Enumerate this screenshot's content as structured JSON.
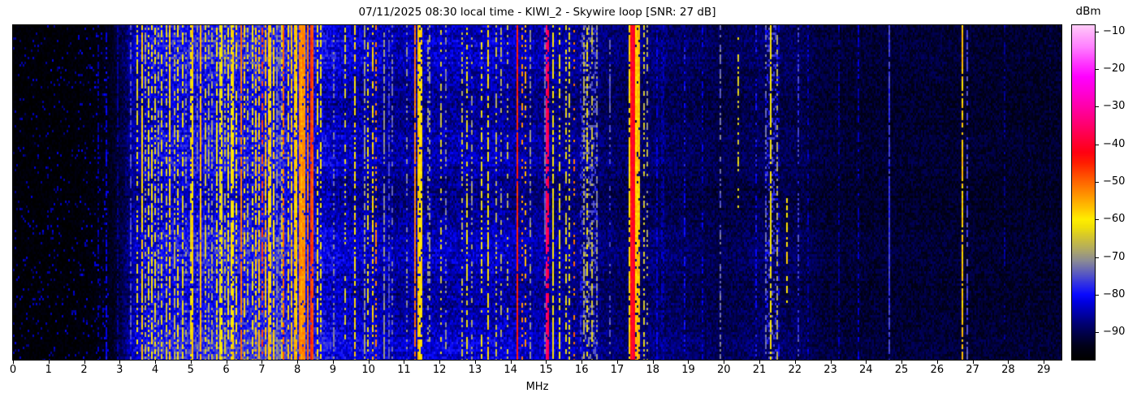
{
  "chart_data": {
    "type": "heatmap",
    "subtype": "rf-waterfall-spectrogram",
    "title": "07/11/2025 08:30 local time - KIWI_2 - Skywire loop [SNR: 27 dB]",
    "xlabel": "MHz",
    "x_range_mhz": [
      0,
      29.5
    ],
    "x_ticks": [
      0,
      1,
      2,
      3,
      4,
      5,
      6,
      7,
      8,
      9,
      10,
      11,
      12,
      13,
      14,
      15,
      16,
      17,
      18,
      19,
      20,
      21,
      22,
      23,
      24,
      25,
      26,
      27,
      28,
      29
    ],
    "grid": false,
    "legend": "none",
    "colorbar": {
      "label": "dBm",
      "position": "right",
      "ticks": [
        -10,
        -20,
        -30,
        -40,
        -50,
        -60,
        -70,
        -80,
        -90
      ],
      "vmin": -97.3,
      "vmax": -8.3
    },
    "colormap_stops": [
      [
        -97.3,
        "#000000"
      ],
      [
        -94,
        "#000016"
      ],
      [
        -91,
        "#000040"
      ],
      [
        -88,
        "#000070"
      ],
      [
        -85,
        "#0000a8"
      ],
      [
        -82,
        "#0000e0"
      ],
      [
        -80,
        "#0a0aff"
      ],
      [
        -77,
        "#3333e2"
      ],
      [
        -74,
        "#6060bb"
      ],
      [
        -71,
        "#8b8b95"
      ],
      [
        -68,
        "#b0a964"
      ],
      [
        -65,
        "#d0c335"
      ],
      [
        -62,
        "#f0e008"
      ],
      [
        -60,
        "#ffee00"
      ],
      [
        -57,
        "#ffc400"
      ],
      [
        -54,
        "#ff9b00"
      ],
      [
        -51,
        "#ff7300"
      ],
      [
        -48,
        "#ff4a00"
      ],
      [
        -45,
        "#ff1e00"
      ],
      [
        -42,
        "#ff0013"
      ],
      [
        -38,
        "#ff0045"
      ],
      [
        -34,
        "#ff0078"
      ],
      [
        -30,
        "#ff00a8"
      ],
      [
        -26,
        "#ff00d6"
      ],
      [
        -22,
        "#ff00ff"
      ],
      [
        -18,
        "#ff3cff"
      ],
      [
        -14,
        "#ff80ff"
      ],
      [
        -10,
        "#ffb3fa"
      ],
      [
        -8.3,
        "#ffccf8"
      ]
    ],
    "noise_floor_envelope": {
      "f_mhz": [
        0,
        1.5,
        2.3,
        2.8,
        3.1,
        3.4,
        4.0,
        5.0,
        6.0,
        7.0,
        8.0,
        8.8,
        9.3,
        10.2,
        10.8,
        11.5,
        12.5,
        13.5,
        14.5,
        15.3,
        16.0,
        16.6,
        17.2,
        18.0,
        19.0,
        20.0,
        21.0,
        22.2,
        22.8,
        24.0,
        26.0,
        28.0,
        29.5
      ],
      "dbm": [
        -96.5,
        -96.5,
        -95.5,
        -93.5,
        -90,
        -85,
        -81.5,
        -81,
        -80,
        -79.5,
        -80,
        -82.5,
        -84,
        -84.5,
        -86,
        -85,
        -85,
        -84.5,
        -85.5,
        -86,
        -87,
        -88.5,
        -89,
        -88.5,
        -89.5,
        -90.5,
        -89.5,
        -90,
        -91.5,
        -92,
        -92,
        -92.5,
        -92.5
      ]
    },
    "signals_columns": [
      "f_mhz",
      "halfwidth_mhz",
      "peak_dbm",
      "duty",
      "row_frac_start",
      "row_frac_end"
    ],
    "signals": [
      [
        2.39,
        0.012,
        -84,
        0.5
      ],
      [
        2.62,
        0.012,
        -81,
        0.6
      ],
      [
        2.93,
        0.012,
        -83,
        0.5
      ],
      [
        3.33,
        0.015,
        -72,
        0.5
      ],
      [
        3.5,
        0.02,
        -63,
        0.55
      ],
      [
        3.63,
        0.015,
        -58,
        0.85
      ],
      [
        3.74,
        0.012,
        -66,
        0.5
      ],
      [
        3.82,
        0.015,
        -62,
        0.6
      ],
      [
        3.9,
        0.02,
        -60,
        0.65
      ],
      [
        4.0,
        0.015,
        -63,
        0.6
      ],
      [
        4.09,
        0.012,
        -68,
        0.5
      ],
      [
        4.17,
        0.015,
        -62,
        0.55
      ],
      [
        4.31,
        0.015,
        -64,
        0.5
      ],
      [
        4.42,
        0.02,
        -57,
        0.8
      ],
      [
        4.54,
        0.012,
        -66,
        0.5
      ],
      [
        4.65,
        0.015,
        -60,
        0.6
      ],
      [
        4.77,
        0.015,
        -62,
        0.6
      ],
      [
        4.88,
        0.012,
        -68,
        0.4
      ],
      [
        5.0,
        0.015,
        -62,
        0.6
      ],
      [
        5.06,
        0.02,
        -57,
        0.9
      ],
      [
        5.17,
        0.012,
        -68,
        0.4
      ],
      [
        5.29,
        0.02,
        -55,
        0.95
      ],
      [
        5.4,
        0.015,
        -62,
        0.6
      ],
      [
        5.52,
        0.012,
        -66,
        0.5
      ],
      [
        5.62,
        0.015,
        -63,
        0.5
      ],
      [
        5.75,
        0.02,
        -59,
        0.7
      ],
      [
        5.85,
        0.02,
        -57,
        0.75
      ],
      [
        5.95,
        0.015,
        -64,
        0.5
      ],
      [
        6.07,
        0.02,
        -59,
        0.7
      ],
      [
        6.17,
        0.02,
        -54,
        0.8
      ],
      [
        6.28,
        0.015,
        -60,
        0.6
      ],
      [
        6.4,
        0.018,
        -47,
        0.9
      ],
      [
        6.52,
        0.015,
        -58,
        0.6
      ],
      [
        6.62,
        0.015,
        -62,
        0.5
      ],
      [
        6.72,
        0.015,
        -56,
        0.6
      ],
      [
        6.83,
        0.02,
        -58,
        0.65
      ],
      [
        6.93,
        0.02,
        -57,
        0.7
      ],
      [
        7.02,
        0.015,
        -48,
        0.55
      ],
      [
        7.12,
        0.02,
        -55,
        0.8
      ],
      [
        7.22,
        0.025,
        -53,
        0.85
      ],
      [
        7.32,
        0.02,
        -57,
        0.7
      ],
      [
        7.44,
        0.015,
        -68,
        0.6
      ],
      [
        7.5,
        0.1,
        -73,
        0.35
      ],
      [
        7.55,
        0.02,
        -62,
        0.6
      ],
      [
        7.61,
        0.012,
        -50,
        0.7
      ],
      [
        7.74,
        0.02,
        -58,
        0.7
      ],
      [
        7.85,
        0.02,
        -56,
        0.75
      ],
      [
        7.95,
        0.03,
        -54,
        0.9
      ],
      [
        8.08,
        0.05,
        -52,
        0.95
      ],
      [
        8.18,
        0.04,
        -51,
        0.95
      ],
      [
        8.28,
        0.03,
        -50,
        0.9
      ],
      [
        8.37,
        0.02,
        -44,
        0.97
      ],
      [
        8.45,
        0.018,
        -45,
        0.95
      ],
      [
        8.55,
        0.02,
        -57,
        0.7
      ],
      [
        8.65,
        0.015,
        -60,
        0.6
      ],
      [
        9.04,
        0.012,
        -70,
        0.5
      ],
      [
        9.35,
        0.015,
        -64,
        0.4
      ],
      [
        9.62,
        0.018,
        -59,
        0.65
      ],
      [
        9.9,
        0.012,
        -69,
        0.7
      ],
      [
        10.0,
        0.015,
        -60,
        0.5
      ],
      [
        10.12,
        0.015,
        -58,
        0.6
      ],
      [
        10.22,
        0.012,
        -52,
        0.45
      ],
      [
        10.45,
        0.012,
        -70,
        0.7
      ],
      [
        10.56,
        0.012,
        -71,
        0.6
      ],
      [
        10.66,
        0.012,
        -72,
        0.5
      ],
      [
        11.1,
        0.012,
        -68,
        0.4
      ],
      [
        11.33,
        0.012,
        -48,
        0.9
      ],
      [
        11.42,
        0.03,
        -55,
        0.85
      ],
      [
        11.5,
        0.02,
        -58,
        0.7
      ],
      [
        11.7,
        0.015,
        -64,
        0.4
      ],
      [
        12.05,
        0.015,
        -64,
        0.45
      ],
      [
        12.2,
        0.012,
        -67,
        0.4
      ],
      [
        12.62,
        0.015,
        -63,
        0.5
      ],
      [
        12.78,
        0.015,
        -62,
        0.5
      ],
      [
        12.9,
        0.012,
        -68,
        0.4
      ],
      [
        13.18,
        0.015,
        -62,
        0.55
      ],
      [
        13.38,
        0.018,
        -58,
        0.7
      ],
      [
        13.58,
        0.015,
        -64,
        0.5
      ],
      [
        13.72,
        0.012,
        -66,
        0.4
      ],
      [
        13.9,
        0.012,
        -64,
        0.4
      ],
      [
        14.19,
        0.015,
        -45,
        0.98
      ],
      [
        14.31,
        0.012,
        -50,
        0.35
      ],
      [
        14.4,
        0.012,
        -52,
        0.3
      ],
      [
        14.55,
        0.012,
        -70,
        0.5
      ],
      [
        14.95,
        0.01,
        -70,
        0.6
      ],
      [
        15.0,
        0.008,
        -33,
        0.8
      ],
      [
        15.07,
        0.008,
        -37,
        0.7
      ],
      [
        15.18,
        0.015,
        -58,
        0.8
      ],
      [
        15.4,
        0.018,
        -57,
        0.6
      ],
      [
        15.55,
        0.015,
        -62,
        0.5
      ],
      [
        15.65,
        0.015,
        -63,
        0.5
      ],
      [
        15.8,
        0.01,
        -50,
        0.15
      ],
      [
        16.05,
        0.02,
        -65,
        0.5
      ],
      [
        16.15,
        0.02,
        -62,
        0.55
      ],
      [
        16.2,
        0.25,
        -73,
        0.3
      ],
      [
        16.3,
        0.02,
        -64,
        0.5
      ],
      [
        16.45,
        0.015,
        -66,
        0.45
      ],
      [
        16.8,
        0.012,
        -74,
        0.4
      ],
      [
        17.33,
        0.012,
        -57,
        0.8
      ],
      [
        17.44,
        0.055,
        -39,
        1.0
      ],
      [
        17.55,
        0.015,
        -52,
        0.9
      ],
      [
        17.62,
        0.015,
        -57,
        0.85
      ],
      [
        17.76,
        0.012,
        -64,
        0.5
      ],
      [
        17.85,
        0.012,
        -68,
        0.4
      ],
      [
        18.1,
        0.01,
        -78,
        0.6
      ],
      [
        18.28,
        0.01,
        -79,
        0.5
      ],
      [
        18.9,
        0.01,
        -80,
        0.4
      ],
      [
        19.4,
        0.01,
        -82,
        0.4
      ],
      [
        19.9,
        0.012,
        -73,
        0.5
      ],
      [
        20.4,
        0.012,
        -63,
        0.45,
        0.0,
        0.55
      ],
      [
        20.9,
        0.01,
        -79,
        0.4
      ],
      [
        21.2,
        0.012,
        -70,
        0.5
      ],
      [
        21.33,
        0.015,
        -60,
        0.75
      ],
      [
        21.35,
        0.2,
        -76,
        0.25
      ],
      [
        21.5,
        0.012,
        -68,
        0.5
      ],
      [
        21.76,
        0.015,
        -56,
        0.6,
        0.5,
        0.82
      ],
      [
        22.1,
        0.01,
        -76,
        0.5
      ],
      [
        22.35,
        0.01,
        -79,
        0.4
      ],
      [
        23.25,
        0.01,
        -84,
        0.5
      ],
      [
        23.8,
        0.01,
        -82,
        0.5
      ],
      [
        24.64,
        0.012,
        -74,
        0.9
      ],
      [
        26.7,
        0.008,
        -56,
        0.85
      ],
      [
        26.85,
        0.01,
        -76,
        0.7
      ],
      [
        27.9,
        0.01,
        -86,
        0.4
      ],
      [
        28.6,
        0.01,
        -87,
        0.3
      ],
      [
        29.2,
        0.01,
        -86,
        0.3
      ]
    ]
  }
}
